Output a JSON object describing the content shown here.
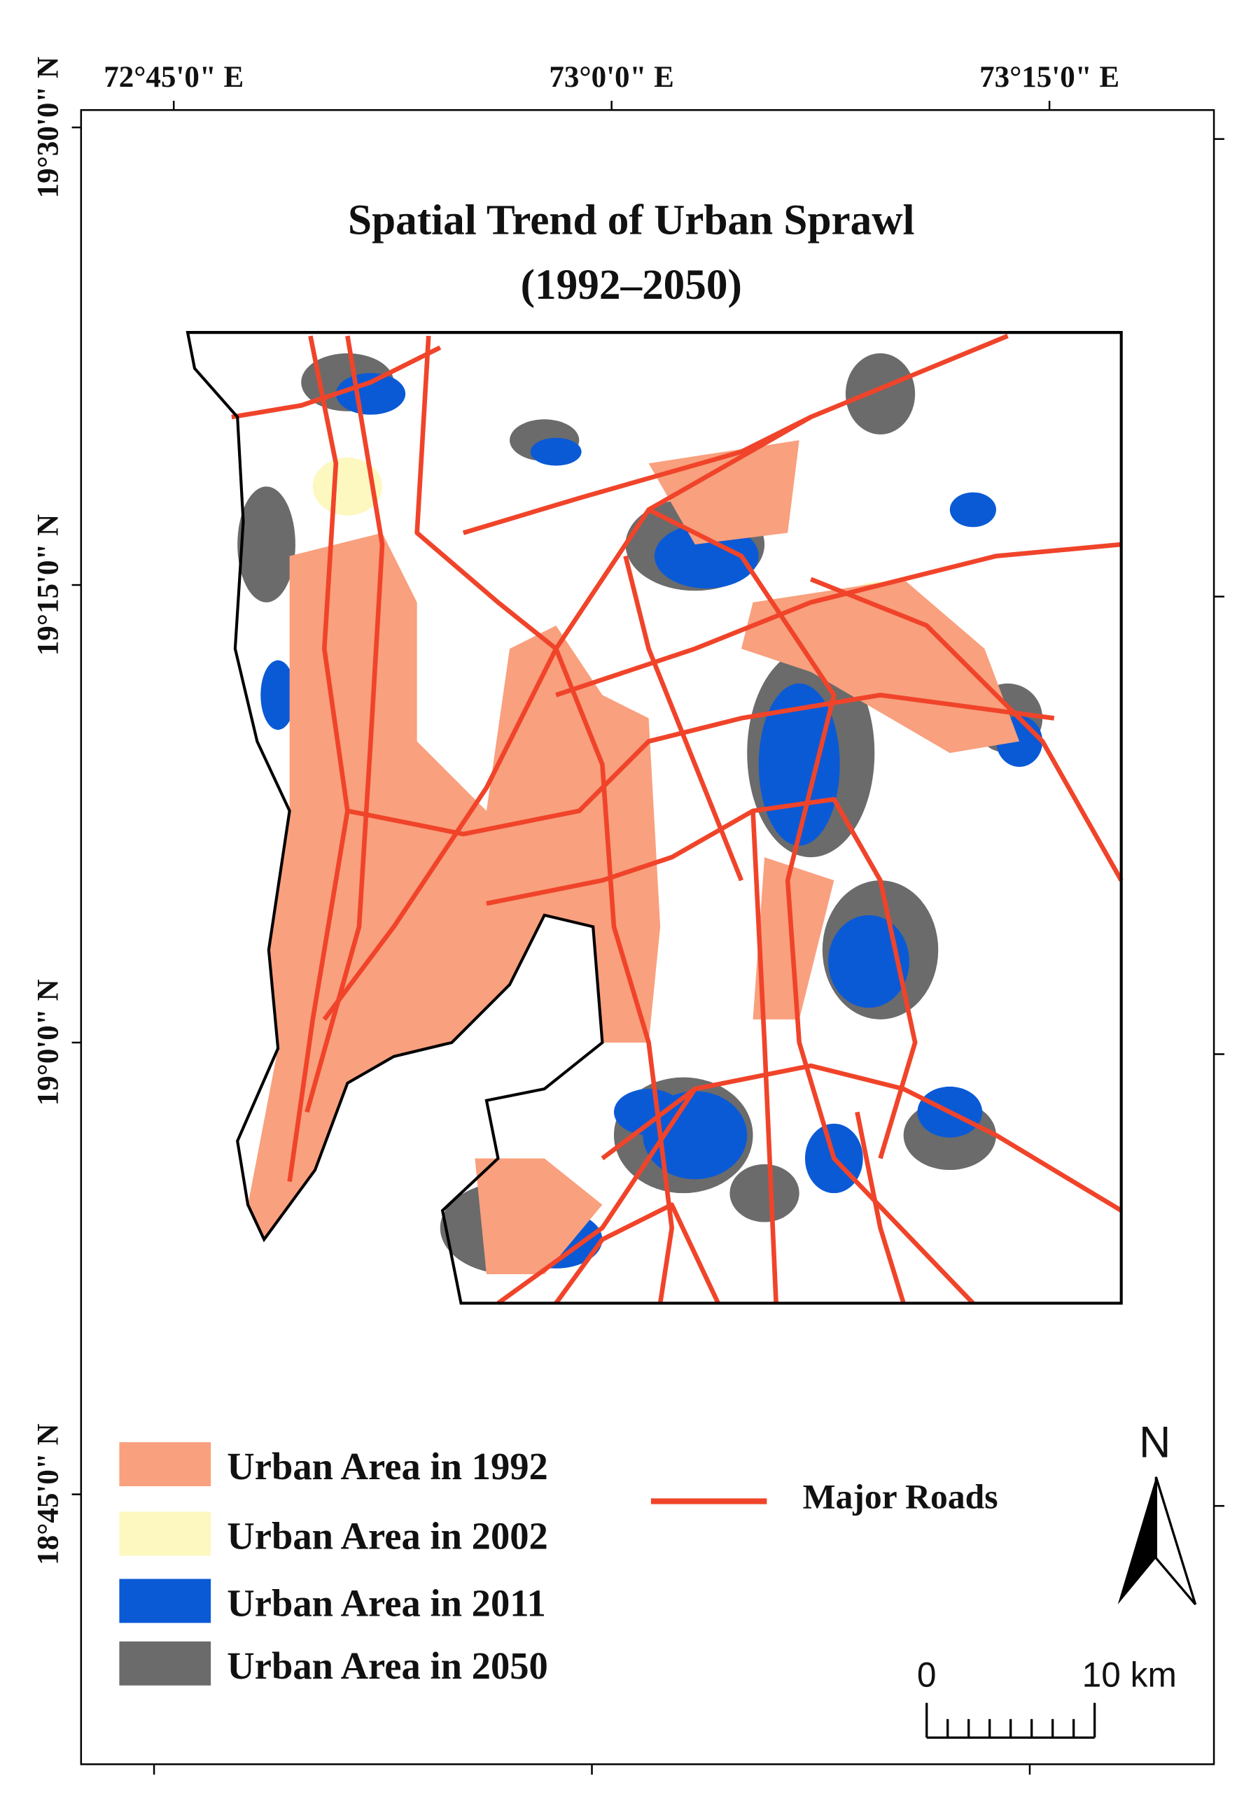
{
  "title": {
    "line1": "Spatial Trend of Urban Sprawl",
    "line2": "(1992–2050)"
  },
  "longitude_labels": [
    "72°45'0\" E",
    "73°0'0\" E",
    "73°15'0\" E"
  ],
  "latitude_labels": [
    "19°30'0\" N",
    "19°15'0\" N",
    "19°0'0\" N",
    "18°45'0\" N"
  ],
  "legend": {
    "items": [
      {
        "label": "Urban Area in 1992",
        "color": "#f9a07e"
      },
      {
        "label": "Urban Area in 2002",
        "color": "#fdf8c0"
      },
      {
        "label": "Urban Area in 2011",
        "color": "#0a5ad6"
      },
      {
        "label": "Urban Area in 2050",
        "color": "#6b6b6b"
      }
    ],
    "roads": {
      "label": "Major Roads",
      "color": "#f0442a"
    }
  },
  "north_arrow": {
    "label": "N"
  },
  "scale_bar": {
    "start": "0",
    "end": "10 km"
  }
}
